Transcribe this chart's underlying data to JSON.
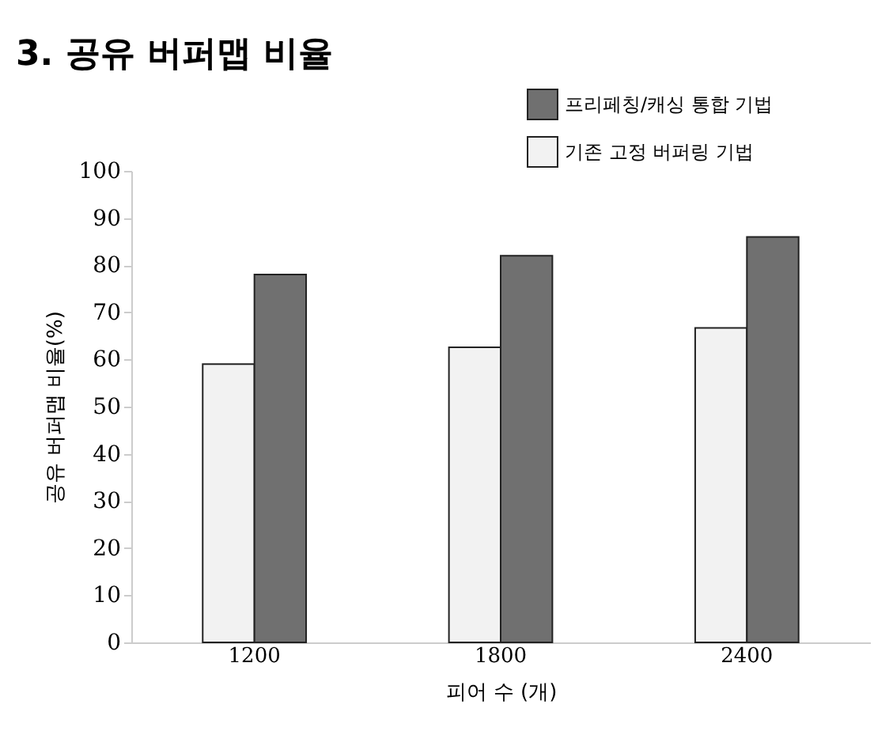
{
  "chart_data": {
    "type": "bar",
    "title": "3. 공유 버퍼맵 비율",
    "xlabel": "피어 수 (개)",
    "ylabel": "공유 버퍼맵 비율(%)",
    "categories": [
      "1200",
      "1800",
      "2400"
    ],
    "series": [
      {
        "name": "기존 고정 버퍼링 기법",
        "color": "#f2f2f2",
        "values": [
          59,
          62.6,
          66.7
        ]
      },
      {
        "name": "프리페칭/캐싱 통합 기법",
        "color": "#707070",
        "values": [
          78,
          82,
          86
        ]
      }
    ],
    "ylim": [
      0,
      100
    ],
    "yticks": [
      0,
      10,
      20,
      30,
      40,
      50,
      60,
      70,
      80,
      90,
      100
    ],
    "grid": false,
    "legend": "top right"
  }
}
